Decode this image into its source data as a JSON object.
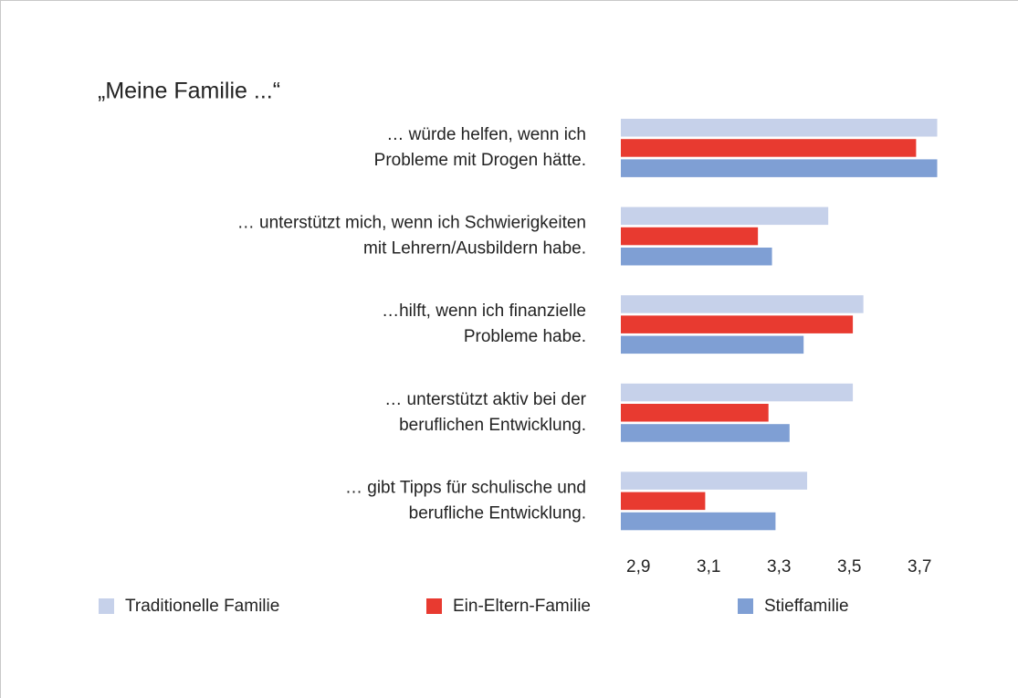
{
  "chart_data": {
    "type": "barh",
    "title": "„Meine Familie ...“",
    "categories": [
      "… würde helfen, wenn ich\nProbleme mit Drogen hätte.",
      "… unterstützt mich, wenn ich Schwierigkeiten\nmit Lehrern/Ausbildern habe.",
      "…hilft, wenn ich finanzielle\nProbleme habe.",
      "… unterstützt aktiv bei der\nberuflichen Entwicklung.",
      "… gibt Tipps für schulische und\nberufliche Entwicklung."
    ],
    "series": [
      {
        "name": "Traditionelle Familie",
        "color": "#c6d1ea",
        "values": [
          3.75,
          3.44,
          3.54,
          3.51,
          3.38
        ]
      },
      {
        "name": "Ein-Eltern-Familie",
        "color": "#e83a30",
        "values": [
          3.69,
          3.24,
          3.51,
          3.27,
          3.09
        ]
      },
      {
        "name": "Stieffamilie",
        "color": "#7f9fd4",
        "values": [
          3.75,
          3.28,
          3.37,
          3.33,
          3.29
        ]
      }
    ],
    "xlim": [
      2.85,
      3.75
    ],
    "xticks": [
      {
        "value": 2.9,
        "label": "2,9"
      },
      {
        "value": 3.1,
        "label": "3,1"
      },
      {
        "value": 3.3,
        "label": "3,3"
      },
      {
        "value": 3.5,
        "label": "3,5"
      },
      {
        "value": 3.7,
        "label": "3,7"
      }
    ],
    "grid": false,
    "legend": "bottom"
  }
}
